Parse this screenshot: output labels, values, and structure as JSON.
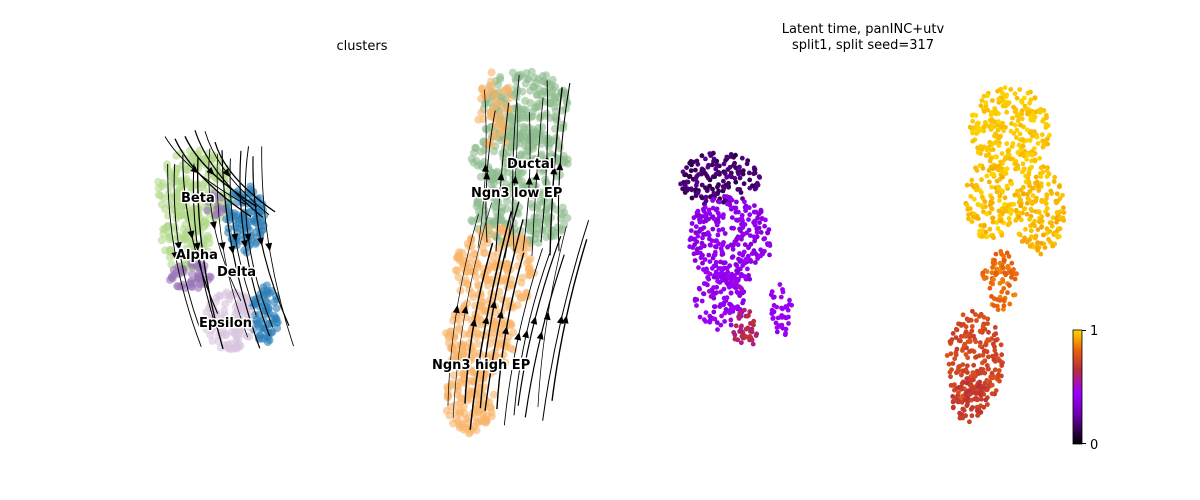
{
  "chart_data": [
    {
      "type": "scatter",
      "subtype": "velocity-stream-embedding",
      "title": "clusters",
      "legend_placement": "on data",
      "grid": false,
      "axes_visible": false,
      "categories": [
        "Ductal",
        "Ngn3 low EP",
        "Ngn3 high EP",
        "Beta",
        "Alpha",
        "Delta",
        "Epsilon"
      ],
      "category_colors": {
        "Ductal": "#8fbc8f",
        "Ngn3 low EP": "#8fbc8f",
        "Ngn3 high EP": "#f8b469",
        "Beta": "#b2d98a",
        "Alpha": "#2c7fb8",
        "Delta": "#9a76b8",
        "Epsilon": "#d9c5df"
      },
      "streamline_color": "#000000"
    },
    {
      "type": "scatter",
      "subtype": "continuous-embedding",
      "title_line1": "Latent time, panINC+utv",
      "title_line2": "split1, split seed=317",
      "colormap": "gnuplot",
      "colorbar": {
        "min": 0,
        "max": 1,
        "tick_min": "0",
        "tick_max": "1"
      },
      "grid": false,
      "axes_visible": false
    }
  ]
}
